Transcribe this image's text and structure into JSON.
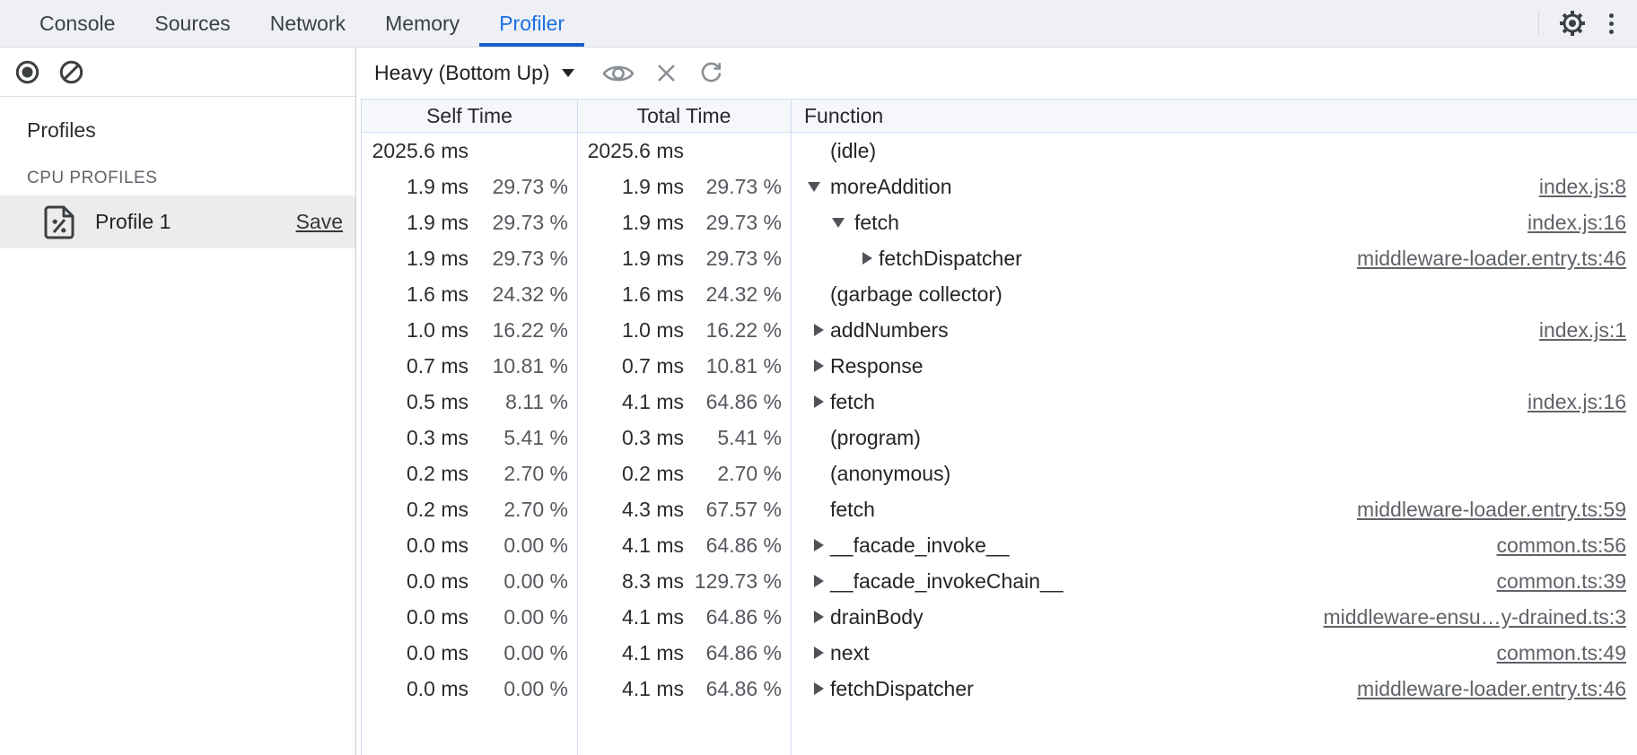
{
  "colors": {
    "accent_blue": "#1a6fe0",
    "tab_underline": "#1a5fd0",
    "tabbar_bg": "#eef0f6",
    "table_border": "#d0ddf2",
    "header_bg": "#f5f7fb",
    "selected_row_bg": "#ececed",
    "link_gray": "#5f6368",
    "icon_dark": "#3c4043",
    "icon_gray": "#8a8f94"
  },
  "tabbar": {
    "tabs": [
      "Console",
      "Sources",
      "Network",
      "Memory",
      "Profiler"
    ],
    "active_tab": "Profiler",
    "icons": [
      "gear-icon",
      "kebab-menu-icon"
    ]
  },
  "left_panel": {
    "toolbar_icons": [
      "record-icon",
      "clear-icon"
    ],
    "profiles_heading": "Profiles",
    "section_label": "CPU PROFILES",
    "profile": {
      "icon": "profile-document-icon",
      "name": "Profile 1",
      "save_label": "Save"
    }
  },
  "toolbar": {
    "view_selector": "Heavy (Bottom Up)",
    "icons": [
      "focus-eye-icon",
      "exclude-x-icon",
      "refresh-icon"
    ]
  },
  "table": {
    "headers": [
      "Self Time",
      "Total Time",
      "Function"
    ],
    "rows": [
      {
        "self_time": "2025.6 ms",
        "self_pct": "",
        "total_time": "2025.6 ms",
        "total_pct": "",
        "arrow": "none",
        "level": 0,
        "fn": "(idle)",
        "link": ""
      },
      {
        "self_time": "1.9 ms",
        "self_pct": "29.73 %",
        "total_time": "1.9 ms",
        "total_pct": "29.73 %",
        "arrow": "down",
        "level": 0,
        "fn": "moreAddition",
        "link": "index.js:8"
      },
      {
        "self_time": "1.9 ms",
        "self_pct": "29.73 %",
        "total_time": "1.9 ms",
        "total_pct": "29.73 %",
        "arrow": "down",
        "level": 1,
        "fn": "fetch",
        "link": "index.js:16"
      },
      {
        "self_time": "1.9 ms",
        "self_pct": "29.73 %",
        "total_time": "1.9 ms",
        "total_pct": "29.73 %",
        "arrow": "right",
        "level": 2,
        "fn": "fetchDispatcher",
        "link": "middleware-loader.entry.ts:46"
      },
      {
        "self_time": "1.6 ms",
        "self_pct": "24.32 %",
        "total_time": "1.6 ms",
        "total_pct": "24.32 %",
        "arrow": "none",
        "level": 0,
        "fn": "(garbage collector)",
        "link": ""
      },
      {
        "self_time": "1.0 ms",
        "self_pct": "16.22 %",
        "total_time": "1.0 ms",
        "total_pct": "16.22 %",
        "arrow": "right",
        "level": 0,
        "fn": "addNumbers",
        "link": "index.js:1"
      },
      {
        "self_time": "0.7 ms",
        "self_pct": "10.81 %",
        "total_time": "0.7 ms",
        "total_pct": "10.81 %",
        "arrow": "right",
        "level": 0,
        "fn": "Response",
        "link": ""
      },
      {
        "self_time": "0.5 ms",
        "self_pct": "8.11 %",
        "total_time": "4.1 ms",
        "total_pct": "64.86 %",
        "arrow": "right",
        "level": 0,
        "fn": "fetch",
        "link": "index.js:16"
      },
      {
        "self_time": "0.3 ms",
        "self_pct": "5.41 %",
        "total_time": "0.3 ms",
        "total_pct": "5.41 %",
        "arrow": "none",
        "level": 0,
        "fn": "(program)",
        "link": ""
      },
      {
        "self_time": "0.2 ms",
        "self_pct": "2.70 %",
        "total_time": "0.2 ms",
        "total_pct": "2.70 %",
        "arrow": "none",
        "level": 0,
        "fn": "(anonymous)",
        "link": ""
      },
      {
        "self_time": "0.2 ms",
        "self_pct": "2.70 %",
        "total_time": "4.3 ms",
        "total_pct": "67.57 %",
        "arrow": "none",
        "level": 0,
        "fn": "fetch",
        "link": "middleware-loader.entry.ts:59"
      },
      {
        "self_time": "0.0 ms",
        "self_pct": "0.00 %",
        "total_time": "4.1 ms",
        "total_pct": "64.86 %",
        "arrow": "right",
        "level": 0,
        "fn": "__facade_invoke__",
        "link": "common.ts:56"
      },
      {
        "self_time": "0.0 ms",
        "self_pct": "0.00 %",
        "total_time": "8.3 ms",
        "total_pct": "129.73 %",
        "arrow": "right",
        "level": 0,
        "fn": "__facade_invokeChain__",
        "link": "common.ts:39"
      },
      {
        "self_time": "0.0 ms",
        "self_pct": "0.00 %",
        "total_time": "4.1 ms",
        "total_pct": "64.86 %",
        "arrow": "right",
        "level": 0,
        "fn": "drainBody",
        "link": "middleware-ensu…y-drained.ts:3"
      },
      {
        "self_time": "0.0 ms",
        "self_pct": "0.00 %",
        "total_time": "4.1 ms",
        "total_pct": "64.86 %",
        "arrow": "right",
        "level": 0,
        "fn": "next",
        "link": "common.ts:49"
      },
      {
        "self_time": "0.0 ms",
        "self_pct": "0.00 %",
        "total_time": "4.1 ms",
        "total_pct": "64.86 %",
        "arrow": "right",
        "level": 0,
        "fn": "fetchDispatcher",
        "link": "middleware-loader.entry.ts:46"
      }
    ]
  }
}
